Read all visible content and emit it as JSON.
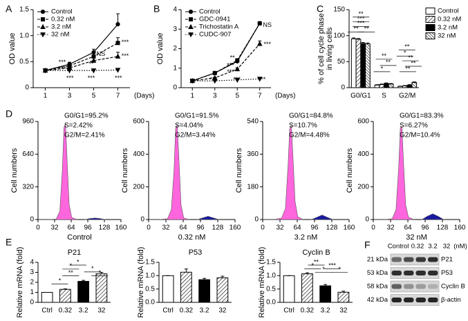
{
  "chart_data": [
    {
      "panel": "A",
      "type": "line",
      "ylabel": "OD value",
      "xlabel": "(Days)",
      "x": [
        1,
        3,
        5,
        7
      ],
      "xlim": [
        0,
        8
      ],
      "xticks": [
        1,
        3,
        5,
        7
      ],
      "ylim": [
        0,
        1.5
      ],
      "yticks": [
        0,
        0.5,
        {
          "value": 1,
          "label": "1.0"
        },
        1.5
      ],
      "legend": "upper left",
      "series": [
        {
          "name": "Control",
          "color": "#000000",
          "marker": "circle",
          "line_style": "solid",
          "values": [
            0.33,
            0.45,
            0.68,
            1.22
          ],
          "errors": [
            0.02,
            0.04,
            0.06,
            0.2
          ]
        },
        {
          "name": "0.32 nM",
          "color": "#000000",
          "marker": "square",
          "line_style": "dashed",
          "values": [
            0.33,
            0.42,
            0.6,
            0.86
          ],
          "errors": [
            0.02,
            0.03,
            0.08,
            0.1
          ]
        },
        {
          "name": "3.2 nM",
          "color": "#000000",
          "marker": "triangle",
          "line_style": "dashed",
          "values": [
            0.33,
            0.38,
            0.52,
            0.6
          ],
          "errors": [
            0.02,
            0.03,
            0.05,
            0.08
          ]
        },
        {
          "name": "32 nM",
          "color": "#000000",
          "marker": "triangle-down",
          "line_style": "dotted",
          "values": [
            0.33,
            0.33,
            0.33,
            0.34
          ],
          "errors": [
            0.01,
            0.01,
            0.02,
            0.02
          ]
        }
      ],
      "annotations": [
        "***",
        "***",
        "***",
        "NS",
        "**",
        "***",
        "***",
        "***",
        "***"
      ]
    },
    {
      "panel": "B",
      "type": "line",
      "ylabel": "OD value",
      "xlabel": "(Days)",
      "x": [
        1,
        3,
        5,
        7
      ],
      "xlim": [
        0,
        8
      ],
      "xticks": [
        1,
        3,
        5,
        7
      ],
      "ylim": [
        0,
        4
      ],
      "yticks": [
        0,
        1,
        2,
        3,
        4
      ],
      "legend": "upper left",
      "series": [
        {
          "name": "Control",
          "color": "#000000",
          "marker": "circle",
          "line_style": "solid",
          "values": [
            0.35,
            0.75,
            1.35,
            3.3
          ],
          "errors": [
            0.03,
            0.05,
            0.08,
            0.08
          ]
        },
        {
          "name": "GDC-0941",
          "color": "#000000",
          "marker": "square",
          "line_style": "dashed",
          "values": [
            0.35,
            0.75,
            1.4,
            3.3
          ],
          "errors": [
            0.03,
            0.05,
            0.08,
            0.08
          ]
        },
        {
          "name": "Trichostatin A",
          "color": "#000000",
          "marker": "triangle",
          "line_style": "dashed",
          "values": [
            0.35,
            0.5,
            0.95,
            2.25
          ],
          "errors": [
            0.03,
            0.04,
            0.06,
            0.15
          ]
        },
        {
          "name": "CUDC-907",
          "color": "#000000",
          "marker": "triangle-down",
          "line_style": "dotted",
          "values": [
            0.35,
            0.35,
            0.4,
            0.45
          ],
          "errors": [
            0.02,
            0.02,
            0.03,
            0.03
          ]
        }
      ],
      "annotations": [
        "NS",
        "***",
        "**",
        "***",
        "***",
        "***",
        "***",
        "***"
      ]
    },
    {
      "panel": "C",
      "type": "bar",
      "ylabel": [
        "% of cell cycle phase",
        "in living cells"
      ],
      "categories": [
        "G0/G1",
        "S",
        "G2/M"
      ],
      "ylim": [
        0,
        150
      ],
      "yticks": [
        0,
        50,
        100,
        150
      ],
      "legend": "right",
      "series": [
        {
          "name": "Control",
          "pattern": "white",
          "values": [
            94,
            5,
            2.5
          ],
          "errors": [
            1.5,
            0.8,
            0.5
          ]
        },
        {
          "name": "0.32 nM",
          "pattern": "hatch",
          "values": [
            93,
            6,
            3.5
          ],
          "errors": [
            1.5,
            1,
            0.6
          ]
        },
        {
          "name": "3.2 nM",
          "pattern": "black",
          "values": [
            85,
            8,
            5
          ],
          "errors": [
            2,
            1.2,
            0.8
          ]
        },
        {
          "name": "32 nM",
          "pattern": "hatch-dense",
          "values": [
            84,
            7,
            10
          ],
          "errors": [
            2,
            1,
            1.2
          ]
        }
      ],
      "annotations": [
        "**",
        "***",
        "***",
        "**",
        "**",
        "**",
        "**",
        "*",
        "**",
        "*",
        "**",
        "**",
        "**"
      ]
    },
    {
      "panel": "D",
      "type": "area",
      "ylabel": "Cell numbers",
      "xlabel": "Control",
      "x": [
        0,
        20,
        35,
        42,
        47,
        50,
        53,
        56,
        60,
        65,
        75,
        90,
        100,
        110,
        120,
        130,
        160
      ],
      "xlim": [
        0,
        160
      ],
      "xticks": [
        0,
        32,
        64,
        96,
        128,
        160
      ],
      "ylim": [
        0,
        960
      ],
      "yticks": [
        0,
        320,
        640,
        960
      ],
      "annotations": [
        "G0/G1=95.2%",
        "S=2.42%",
        "G2/M=2.41%"
      ],
      "series": [
        {
          "color": "#ff66dd",
          "values": [
            0,
            0,
            5,
            80,
            500,
            900,
            940,
            600,
            150,
            20,
            0,
            null,
            null,
            null,
            null,
            null,
            null
          ]
        },
        {
          "color": "#1a1aa0",
          "values": [
            null,
            null,
            null,
            null,
            null,
            null,
            null,
            null,
            null,
            null,
            null,
            0,
            10,
            15,
            10,
            0,
            null
          ]
        }
      ]
    },
    {
      "type": "area",
      "ylabel": "Cell numbers",
      "xlabel": "0.32 nM",
      "x": [
        0,
        20,
        35,
        42,
        47,
        50,
        53,
        56,
        60,
        65,
        75,
        90,
        100,
        110,
        120,
        130,
        160
      ],
      "xlim": [
        0,
        160
      ],
      "xticks": [
        0,
        32,
        64,
        96,
        128,
        160
      ],
      "ylim": [
        0,
        600
      ],
      "yticks": [
        0,
        200,
        400,
        600
      ],
      "annotations": [
        "G0/G1=91.5%",
        "S=4.04%",
        "G2/M=3.44%"
      ],
      "series": [
        {
          "color": "#ff66dd",
          "values": [
            0,
            0,
            5,
            60,
            300,
            560,
            580,
            380,
            90,
            10,
            0,
            null,
            null,
            null,
            null,
            null,
            null
          ]
        },
        {
          "color": "#1a1aa0",
          "values": [
            null,
            null,
            null,
            null,
            null,
            null,
            null,
            null,
            null,
            null,
            null,
            0,
            10,
            20,
            10,
            0,
            null
          ]
        }
      ]
    },
    {
      "type": "area",
      "ylabel": "Cell numbers",
      "xlabel": "3.2 nM",
      "x": [
        0,
        20,
        35,
        42,
        47,
        50,
        53,
        56,
        60,
        65,
        75,
        90,
        100,
        110,
        120,
        130,
        160
      ],
      "xlim": [
        0,
        160
      ],
      "xticks": [
        0,
        32,
        64,
        96,
        128,
        160
      ],
      "ylim": [
        0,
        540
      ],
      "yticks": [
        0,
        180,
        360,
        540
      ],
      "annotations": [
        "G0/G1=84.8%",
        "S=10.7%",
        "G2/M=4.48%"
      ],
      "series": [
        {
          "color": "#ff66dd",
          "values": [
            0,
            0,
            8,
            60,
            300,
            500,
            520,
            350,
            100,
            15,
            0,
            null,
            null,
            null,
            null,
            null,
            null
          ]
        },
        {
          "color": "#1a1aa0",
          "values": [
            null,
            null,
            null,
            null,
            null,
            null,
            null,
            null,
            null,
            null,
            null,
            0,
            12,
            25,
            12,
            0,
            null
          ]
        }
      ]
    },
    {
      "type": "area",
      "ylabel": "Cell numbers",
      "xlabel": "32 nM",
      "x": [
        0,
        20,
        35,
        42,
        47,
        50,
        53,
        56,
        60,
        65,
        75,
        90,
        100,
        110,
        120,
        130,
        160
      ],
      "xlim": [
        0,
        160
      ],
      "xticks": [
        0,
        32,
        64,
        96,
        128,
        160
      ],
      "ylim": [
        0,
        600
      ],
      "yticks": [
        0,
        200,
        400,
        600
      ],
      "annotations": [
        "G0/G1=83.3%",
        "S=6.27%",
        "G2/M=10.4%"
      ],
      "series": [
        {
          "color": "#ff66dd",
          "values": [
            0,
            0,
            5,
            60,
            320,
            560,
            570,
            350,
            90,
            15,
            0,
            null,
            null,
            null,
            null,
            null,
            null
          ]
        },
        {
          "color": "#1a1aa0",
          "values": [
            null,
            null,
            null,
            null,
            null,
            null,
            null,
            null,
            null,
            null,
            null,
            0,
            20,
            35,
            20,
            0,
            null
          ]
        }
      ]
    },
    {
      "panel": "E",
      "type": "bar",
      "title": "P21",
      "ylabel": "Relative mRNA (fold)",
      "categories": [
        "Ctrl",
        "0.32",
        "3.2",
        "32"
      ],
      "values": [
        1,
        1.3,
        2.1,
        2.85
      ],
      "errors": [
        0,
        0.05,
        0.1,
        0.15
      ],
      "patterns": [
        "white",
        "hatch",
        "black",
        "hatch"
      ],
      "ylim": [
        0,
        4
      ],
      "yticks": [
        0,
        1,
        2,
        3,
        4
      ],
      "annotations": [
        "*",
        "*",
        "*",
        "**",
        "*",
        "*"
      ]
    },
    {
      "type": "bar",
      "title": "P53",
      "ylabel": "Relative mRNA (fold)",
      "categories": [
        "Ctrl",
        "0.32",
        "3.2",
        "32"
      ],
      "values": [
        1,
        1.13,
        0.85,
        0.92
      ],
      "errors": [
        0,
        0.12,
        0.05,
        0.06
      ],
      "patterns": [
        "white",
        "hatch",
        "black",
        "hatch"
      ],
      "ylim": [
        0,
        1.5
      ],
      "yticks": [
        {
          "value": 0,
          "label": "0.0"
        },
        0.5,
        {
          "value": 1,
          "label": "1.0"
        },
        1.5
      ]
    },
    {
      "type": "bar",
      "title": "Cyclin B",
      "ylabel": "Relative mRNA (fold)",
      "categories": [
        "Ctrl",
        "0.32",
        "3.2",
        "32"
      ],
      "values": [
        1,
        1.07,
        0.62,
        0.38
      ],
      "errors": [
        0,
        0.04,
        0.05,
        0.04
      ],
      "patterns": [
        "white",
        "hatch",
        "black",
        "hatch"
      ],
      "ylim": [
        0,
        1.5
      ],
      "yticks": [
        {
          "value": 0,
          "label": "0.0"
        },
        0.5,
        {
          "value": 1,
          "label": "1.0"
        },
        1.5
      ],
      "annotations": [
        "**",
        "*",
        "***",
        "*",
        "*"
      ]
    }
  ],
  "blot": {
    "panel": "F",
    "lanes": [
      "Control",
      "0.32",
      "3.2",
      "32"
    ],
    "unit": "(nM)",
    "rows": [
      {
        "size": "21 kDa",
        "protein": "P21"
      },
      {
        "size": "53 kDa",
        "protein": "P53"
      },
      {
        "size": "58 kDa",
        "protein": "Cyclin B"
      },
      {
        "size": "42 kDa",
        "protein": "β-actin"
      }
    ]
  }
}
